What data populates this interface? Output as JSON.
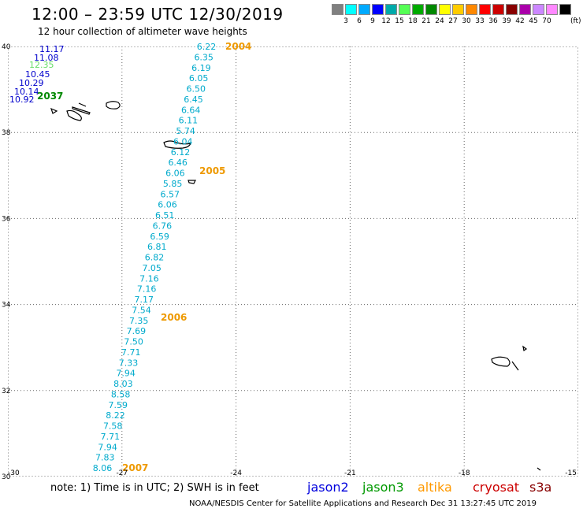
{
  "header": {
    "title": "12:00 – 23:59 UTC 12/30/2019",
    "subtitle": "12 hour collection of altimeter wave heights"
  },
  "scale": {
    "colors": [
      "#808080",
      "#00ffff",
      "#00aaff",
      "#0000ff",
      "#00aaaa",
      "#55ff55",
      "#00aa00",
      "#008800",
      "#ffff00",
      "#ffcc00",
      "#ff8800",
      "#ff0000",
      "#cc0000",
      "#880000",
      "#aa00aa",
      "#cc88ff",
      "#ff88ff",
      "#000000"
    ],
    "labels": [
      "3",
      "6",
      "9",
      "12",
      "15",
      "18",
      "21",
      "24",
      "27",
      "30",
      "33",
      "36",
      "39",
      "42",
      "45",
      "70"
    ],
    "unit": "(ft)"
  },
  "axes": {
    "x_labels": [
      "-30",
      "-27",
      "-24",
      "-21",
      "-18",
      "-15"
    ],
    "y_labels": [
      "40",
      "38",
      "36",
      "34",
      "32",
      "30"
    ]
  },
  "observations": {
    "west_track": [
      {
        "v": "11.17",
        "color": "#0000cc"
      },
      {
        "v": "11.08",
        "color": "#0000cc"
      },
      {
        "v": "12.35",
        "color": "#66dd66"
      },
      {
        "v": "10.45",
        "color": "#0000cc"
      },
      {
        "v": "10.29",
        "color": "#0000cc"
      },
      {
        "v": "10.14",
        "color": "#0000cc"
      },
      {
        "v": "10.92",
        "color": "#0000cc"
      }
    ],
    "main_track": [
      "6.22",
      "6.35",
      "6.19",
      "6.05",
      "6.50",
      "6.45",
      "6.64",
      "6.11",
      "5.74",
      "6.04",
      "6.12",
      "6.46",
      "6.06",
      "5.85",
      "6.57",
      "6.06",
      "6.51",
      "6.76",
      "6.59",
      "6.81",
      "6.82",
      "7.05",
      "7.16",
      "7.16",
      "7.17",
      "7.54",
      "7.35",
      "7.69",
      "7.50",
      "7.71",
      "7.33",
      "7.94",
      "8.03",
      "8.58",
      "7.59",
      "8.22",
      "7.58",
      "7.71",
      "7.94",
      "7.83",
      "8.06"
    ],
    "main_color": "#00aacc"
  },
  "pass_times": {
    "west": {
      "label": "2037",
      "color": "#008800"
    },
    "track": [
      {
        "label": "2004",
        "color": "#ee9900"
      },
      {
        "label": "2005",
        "color": "#ee9900"
      },
      {
        "label": "2006",
        "color": "#ee9900"
      },
      {
        "label": "2007",
        "color": "#ee9900"
      }
    ]
  },
  "footer": {
    "note": "note:  1) Time is in UTC;  2) SWH is in feet",
    "satellites": [
      {
        "name": "jason2",
        "color": "#0000dd"
      },
      {
        "name": "jason3",
        "color": "#009900"
      },
      {
        "name": "altika",
        "color": "#ff9900"
      },
      {
        "name": "cryosat",
        "color": "#cc0000"
      },
      {
        "name": "s3a",
        "color": "#880000"
      }
    ],
    "credit": "NOAA/NESDIS Center for Satellite Applications and Research     Dec 31 13:27:45 UTC 2019"
  }
}
